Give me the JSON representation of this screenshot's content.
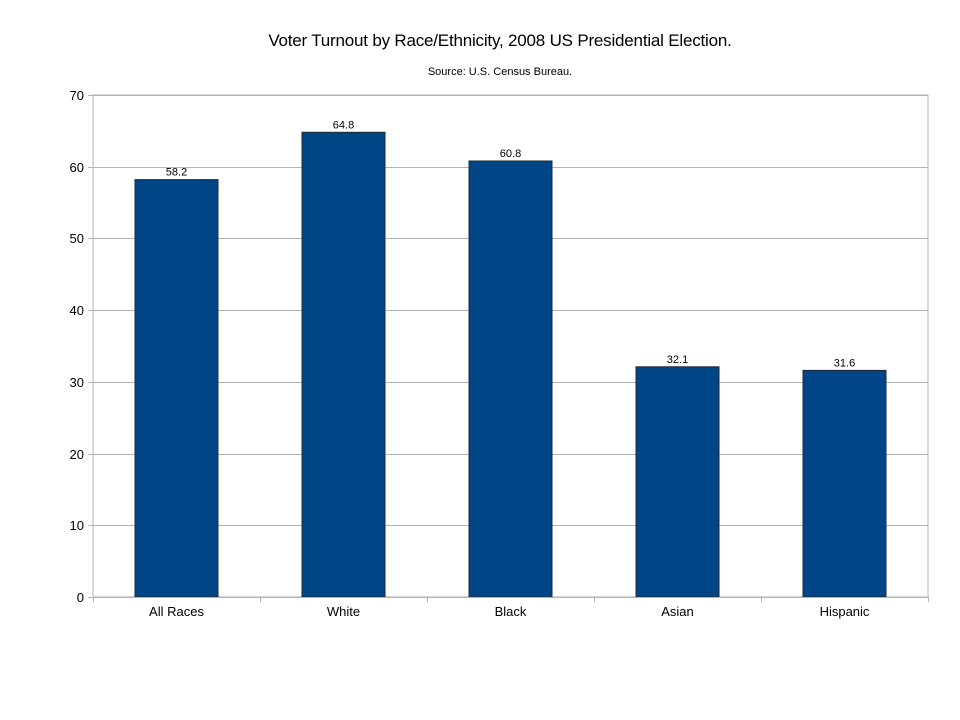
{
  "chart_data": {
    "type": "bar",
    "title": "Voter Turnout by Race/Ethnicity, 2008 US Presidential Election.",
    "subtitle": "Source: U.S. Census Bureau.",
    "xlabel": "",
    "ylabel": "",
    "categories": [
      "All Races",
      "White",
      "Black",
      "Asian",
      "Hispanic"
    ],
    "values": [
      58.2,
      64.8,
      60.8,
      32.1,
      31.6
    ],
    "data_labels": [
      "58.2",
      "64.8",
      "60.8",
      "32.1",
      "31.6"
    ],
    "ylim": [
      0,
      70
    ],
    "yticks": [
      0,
      10,
      20,
      30,
      40,
      50,
      60,
      70
    ],
    "grid": true,
    "legend": "none",
    "bar_color": "#004586",
    "grid_color": "#b3b3b3"
  }
}
